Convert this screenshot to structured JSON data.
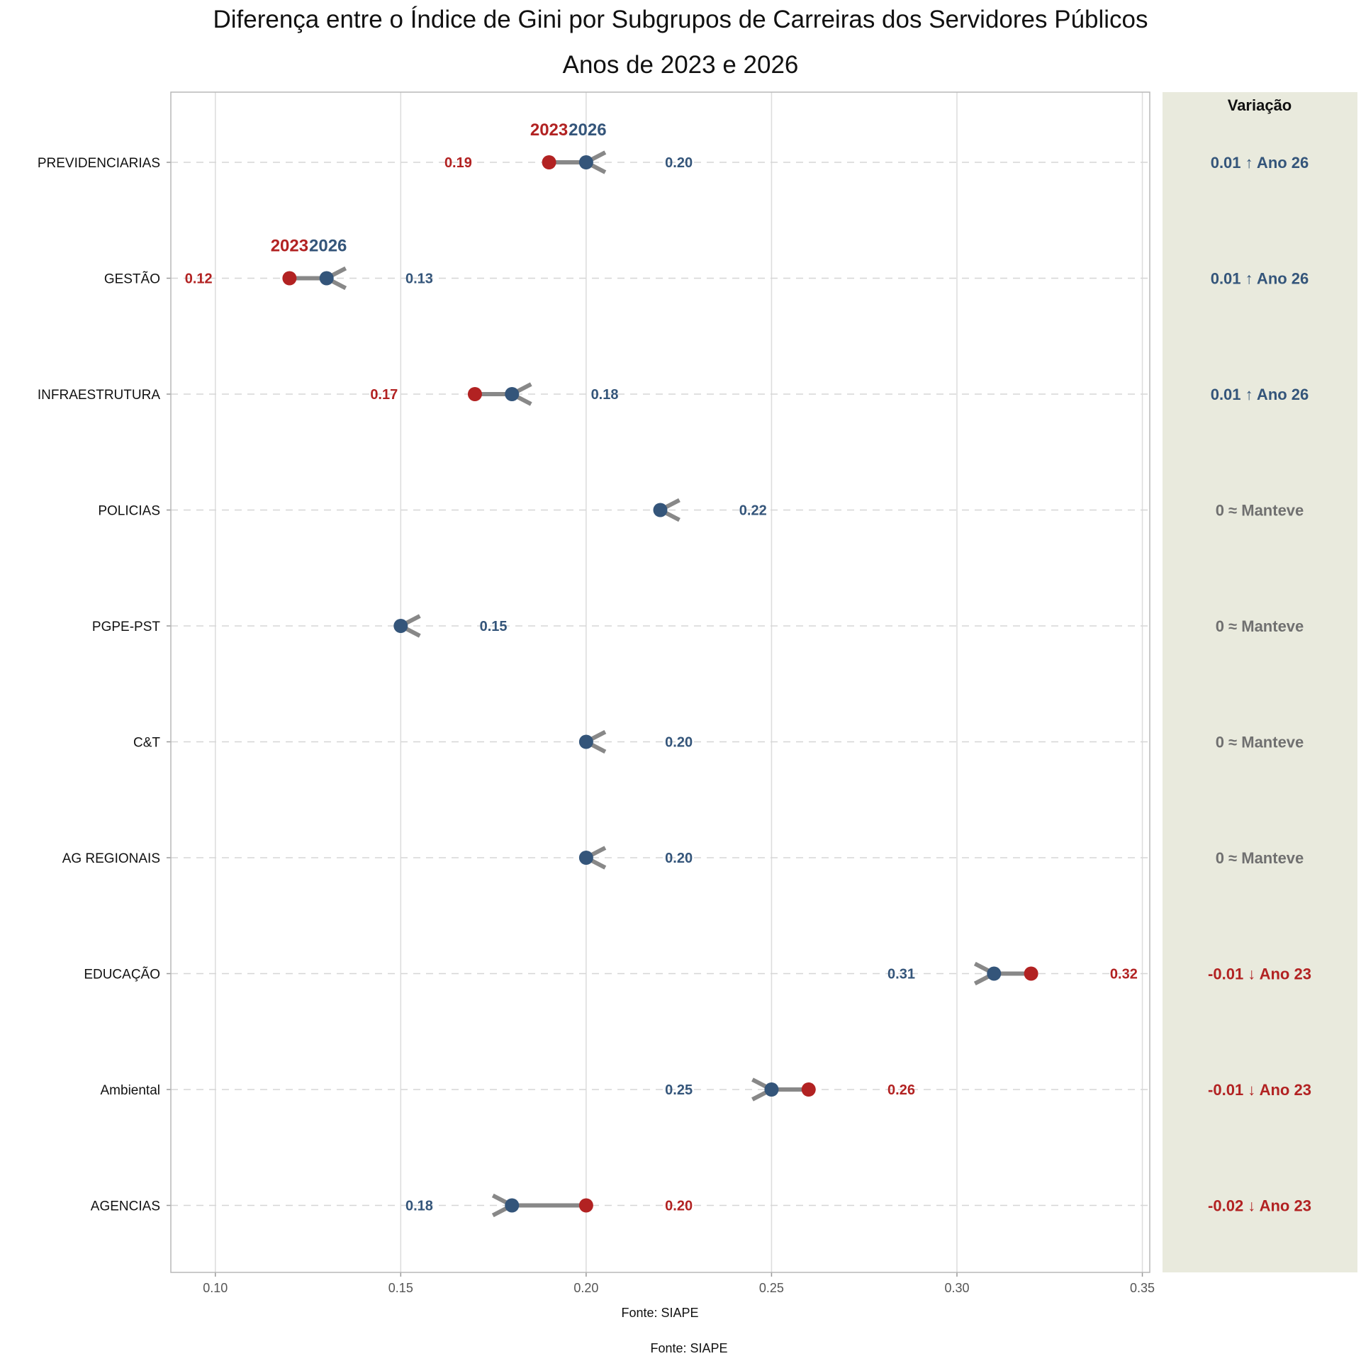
{
  "chart_data": {
    "type": "dumbbell",
    "title": "Diferença entre o Índice de Gini por Subgrupos de Carreiras dos Servidores Públicos",
    "subtitle": "Anos de 2023 e 2026",
    "xlabel": "Fonte: SIAPE",
    "caption": "Fonte: SIAPE",
    "xlim": [
      0.088,
      0.352
    ],
    "x_ticks": [
      "0.10",
      "0.15",
      "0.20",
      "0.25",
      "0.30",
      "0.35"
    ],
    "x_tick_values": [
      0.1,
      0.15,
      0.2,
      0.25,
      0.3,
      0.35
    ],
    "grid": true,
    "legend_labels": [
      "2023",
      "2026"
    ],
    "legend_rows": [
      "PREVIDENCIARIAS",
      "GESTÃO"
    ],
    "variation_header": "Variação",
    "colors": {
      "y2023": "#b22222",
      "y2026": "#34557a",
      "arrow": "#888888",
      "neutral": "#707070",
      "panel": "#e9eadd"
    },
    "series": [
      {
        "name": "2023",
        "key": "y2023"
      },
      {
        "name": "2026",
        "key": "y2026"
      }
    ],
    "rows": [
      {
        "category": "PREVIDENCIARIAS",
        "y2023": 0.19,
        "y2026": 0.2,
        "label2023": "0.19",
        "label2026": "0.20",
        "variation": "0.01 ↑ Ano 26",
        "trend": "up"
      },
      {
        "category": "GESTÃO",
        "y2023": 0.12,
        "y2026": 0.13,
        "label2023": "0.12",
        "label2026": "0.13",
        "variation": "0.01 ↑ Ano 26",
        "trend": "up"
      },
      {
        "category": "INFRAESTRUTURA",
        "y2023": 0.17,
        "y2026": 0.18,
        "label2023": "0.17",
        "label2026": "0.18",
        "variation": "0.01 ↑ Ano 26",
        "trend": "up"
      },
      {
        "category": "POLICIAS",
        "y2023": 0.22,
        "y2026": 0.22,
        "label2023": "0.22",
        "label2026": "0.22",
        "variation": "0 ≈ Manteve",
        "trend": "same"
      },
      {
        "category": "PGPE-PST",
        "y2023": 0.15,
        "y2026": 0.15,
        "label2023": "0.15",
        "label2026": "0.15",
        "variation": "0 ≈ Manteve",
        "trend": "same"
      },
      {
        "category": "C&T",
        "y2023": 0.2,
        "y2026": 0.2,
        "label2023": "0.20",
        "label2026": "0.20",
        "variation": "0 ≈ Manteve",
        "trend": "same"
      },
      {
        "category": "AG REGIONAIS",
        "y2023": 0.2,
        "y2026": 0.2,
        "label2023": "0.20",
        "label2026": "0.20",
        "variation": "0 ≈ Manteve",
        "trend": "same"
      },
      {
        "category": "EDUCAÇÃO",
        "y2023": 0.32,
        "y2026": 0.31,
        "label2023": "0.32",
        "label2026": "0.31",
        "variation": "-0.01 ↓ Ano 23",
        "trend": "down"
      },
      {
        "category": "Ambiental",
        "y2023": 0.26,
        "y2026": 0.25,
        "label2023": "0.26",
        "label2026": "0.25",
        "variation": "-0.01 ↓ Ano 23",
        "trend": "down"
      },
      {
        "category": "AGENCIAS",
        "y2023": 0.2,
        "y2026": 0.18,
        "label2023": "0.20",
        "label2026": "0.18",
        "variation": "-0.02 ↓ Ano 23",
        "trend": "down"
      }
    ]
  }
}
